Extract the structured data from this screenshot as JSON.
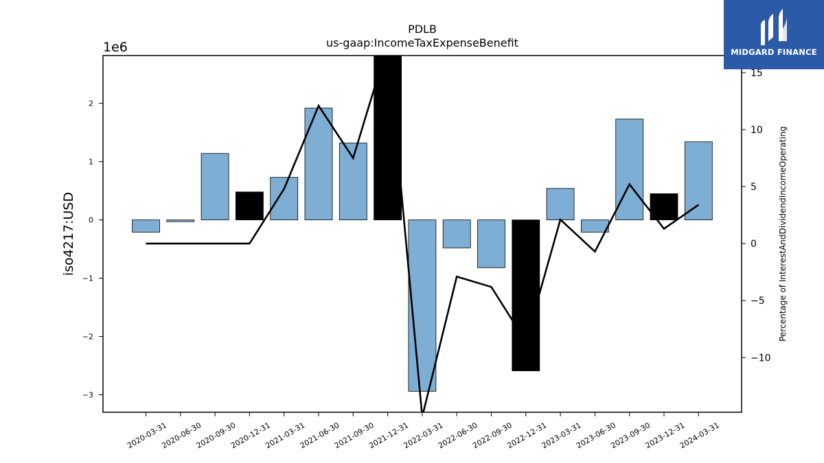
{
  "chart_data": {
    "type": "bar",
    "title": "PDLB",
    "subtitle": "us-gaap:IncomeTaxExpenseBenefit",
    "ylabel": "iso4217:USD",
    "y2label": "Percentage of InterestAndDividendIncomeOperating",
    "y_multiplier": "1e6",
    "categories": [
      "2020-03-31",
      "2020-06-30",
      "2020-09-30",
      "2020-12-31",
      "2021-03-31",
      "2021-06-30",
      "2021-09-30",
      "2021-12-31",
      "2022-03-31",
      "2022-06-30",
      "2022-09-30",
      "2022-12-31",
      "2023-03-31",
      "2023-06-30",
      "2023-09-30",
      "2023-12-31",
      "2024-03-31"
    ],
    "series": [
      {
        "values": [
          -210000,
          -30000,
          1140000,
          480000,
          730000,
          1920000,
          1320000,
          2820000,
          -2940000,
          -480000,
          -820000,
          -2590000,
          540000,
          -210000,
          1730000,
          450000,
          1340000
        ],
        "highlight": [
          false,
          false,
          false,
          true,
          false,
          false,
          false,
          true,
          false,
          false,
          false,
          true,
          false,
          false,
          false,
          true,
          false
        ],
        "color": "#7eaed3",
        "highlight_color": "#000000",
        "axis": "left"
      },
      {
        "type": "line",
        "values": [
          0,
          0,
          0,
          0,
          4.8,
          12.1,
          7.5,
          17.5,
          -15.2,
          -2.9,
          -3.8,
          -8.6,
          2.1,
          -0.7,
          5.2,
          1.3,
          3.4
        ],
        "color": "#000000",
        "axis": "right"
      }
    ],
    "ylim": [
      -3300000,
      2820000
    ],
    "y2lim": [
      -14.8,
      16.5
    ],
    "yticks": [
      -3,
      -2,
      -1,
      0,
      1,
      2
    ],
    "y2ticks": [
      -10,
      -5,
      0,
      5,
      10,
      15
    ],
    "grid": false
  },
  "logo": {
    "text": "MIDGARD FINANCE"
  }
}
